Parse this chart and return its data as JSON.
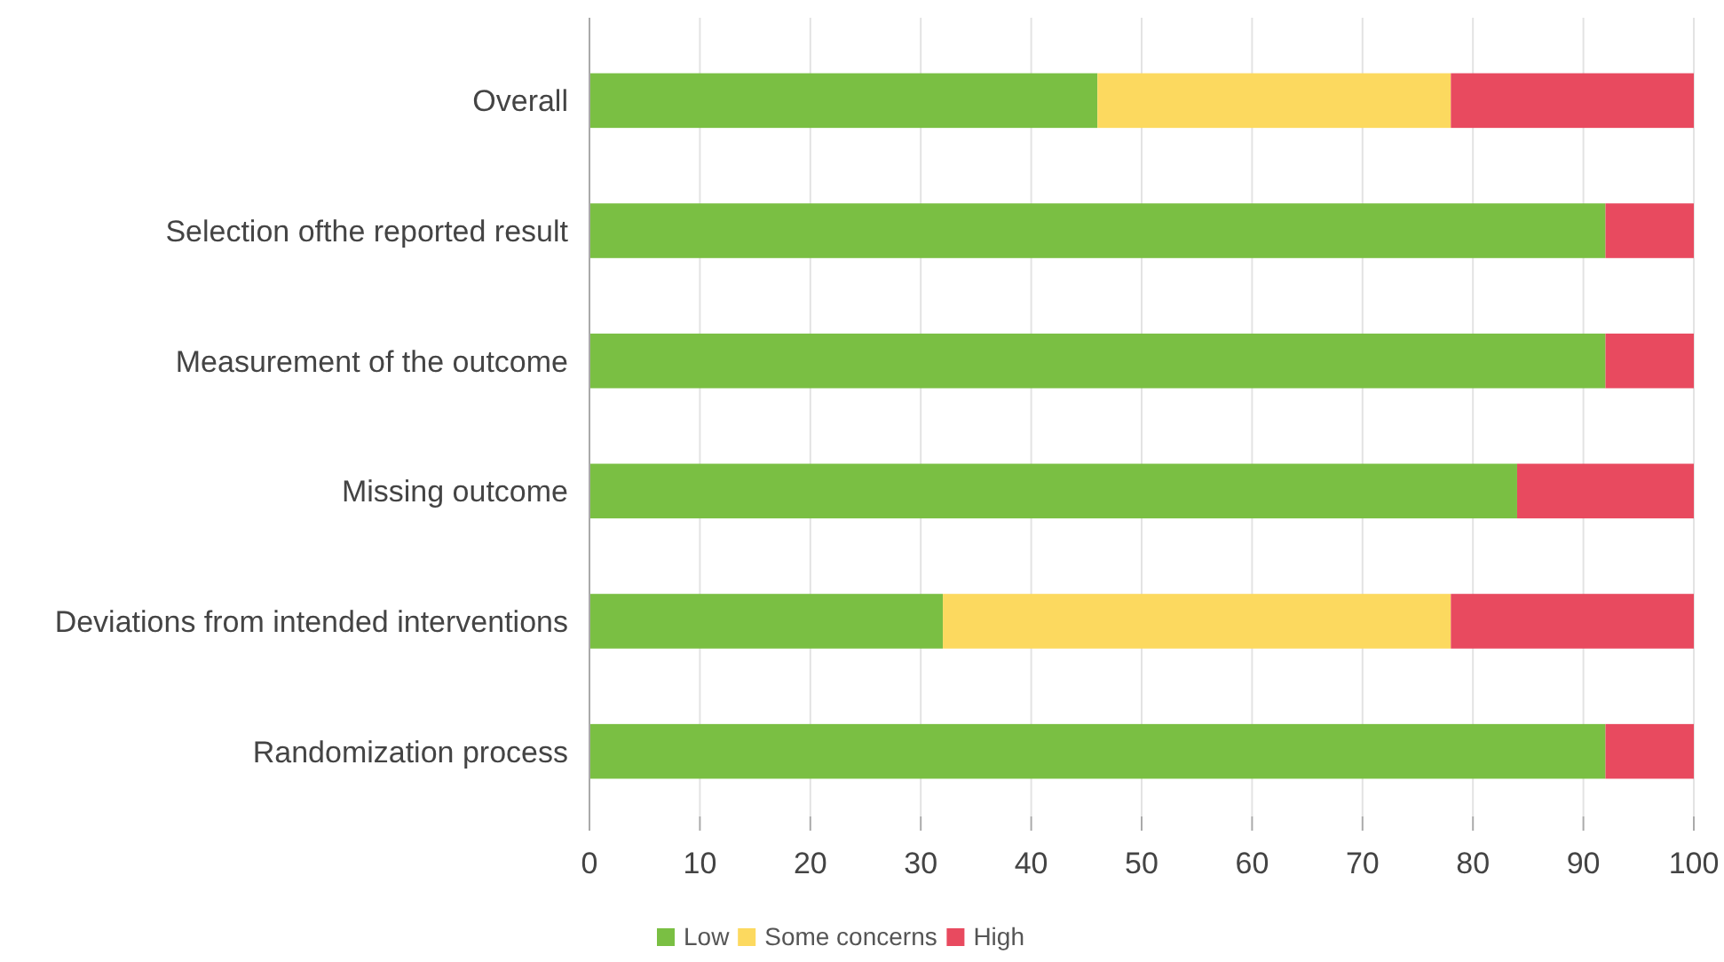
{
  "chart_data": {
    "type": "bar",
    "orientation": "horizontal",
    "stacked": true,
    "categories": [
      "Overall",
      "Selection ofthe reported result",
      "Measurement of the outcome",
      "Missing outcome",
      "Deviations from intended interventions",
      "Randomization process"
    ],
    "series": [
      {
        "name": "Low",
        "color": "#7abf43",
        "values": [
          46,
          92,
          92,
          84,
          32,
          92
        ]
      },
      {
        "name": "Some concerns",
        "color": "#fcd95f",
        "values": [
          32,
          0,
          0,
          0,
          46,
          0
        ]
      },
      {
        "name": "High",
        "color": "#e84a5f",
        "values": [
          22,
          8,
          8,
          16,
          22,
          8
        ]
      }
    ],
    "xlim": [
      0,
      100
    ],
    "xticks": [
      0,
      10,
      20,
      30,
      40,
      50,
      60,
      70,
      80,
      90,
      100
    ],
    "grid": "x",
    "legend": "bottom"
  }
}
